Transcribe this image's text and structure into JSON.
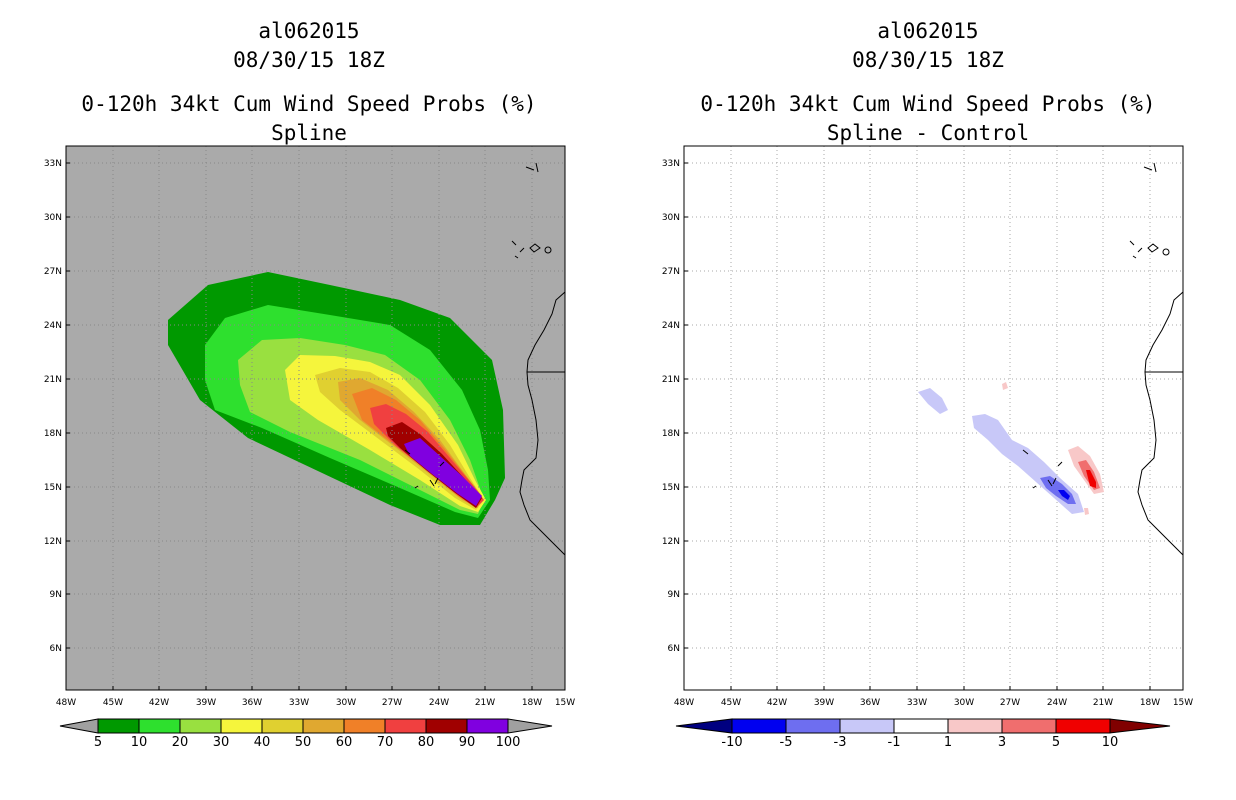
{
  "panels": [
    {
      "storm_id": "al062015",
      "datetime": "08/30/15 18Z",
      "product": "0-120h 34kt Cum Wind Speed Probs (%)",
      "subtitle": "Spline"
    },
    {
      "storm_id": "al062015",
      "datetime": "08/30/15 18Z",
      "product": "0-120h 34kt Cum Wind Speed Probs (%)",
      "subtitle": "Spline - Control"
    }
  ],
  "axes": {
    "lat_labels": [
      "33N",
      "30N",
      "27N",
      "24N",
      "21N",
      "18N",
      "15N",
      "12N",
      "9N",
      "6N"
    ],
    "lon_labels": [
      "48W",
      "45W",
      "42W",
      "39W",
      "36W",
      "33W",
      "30W",
      "27W",
      "24W",
      "21W",
      "18W",
      "15W"
    ]
  },
  "legend_left": {
    "labels": [
      "5",
      "10",
      "20",
      "30",
      "40",
      "50",
      "60",
      "70",
      "80",
      "90",
      "100"
    ],
    "colors": [
      "#009900",
      "#2ee02e",
      "#99e040",
      "#f5f53c",
      "#e0d030",
      "#e0a830",
      "#f08028",
      "#f04040",
      "#a00000",
      "#8000e0"
    ],
    "end_color": "#a0a0a0"
  },
  "legend_right": {
    "labels": [
      "-10",
      "-5",
      "-3",
      "-1",
      "1",
      "3",
      "5",
      "10"
    ],
    "colors": [
      "#0000f0",
      "#6e6ef0",
      "#c8c8f8",
      "#ffffff",
      "#f8c8c8",
      "#f06e6e",
      "#f00000"
    ],
    "low_color": "#000080",
    "high_color": "#800000"
  },
  "colors": {
    "ocean_left": "#aaaaaa",
    "ocean_right": "#ffffff"
  }
}
